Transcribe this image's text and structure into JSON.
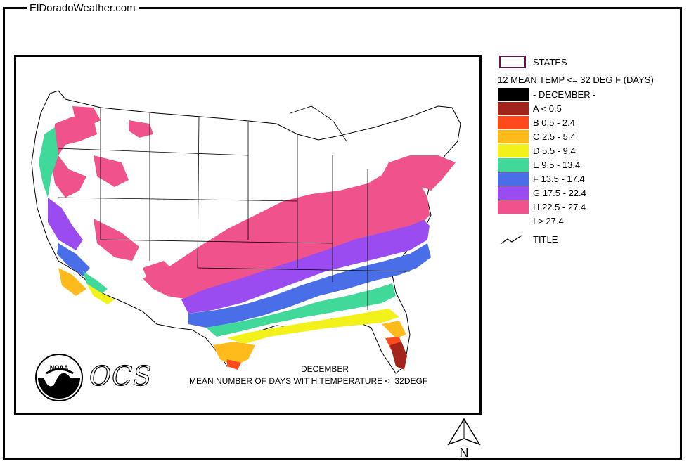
{
  "site": {
    "title": "ElDoradoWeather.com"
  },
  "legend": {
    "states_label": "STATES",
    "title": "12 MEAN TEMP <= 32 DEG F (DAYS)",
    "items": [
      {
        "label": "- DECEMBER -",
        "color": "#000000"
      },
      {
        "label": "A < 0.5",
        "color": "#a3241a"
      },
      {
        "label": "B 0.5 - 2.4",
        "color": "#ff4a1e"
      },
      {
        "label": "C 2.5 - 5.4",
        "color": "#ffbb1c"
      },
      {
        "label": "D 5.5 - 9.4",
        "color": "#f2f21a"
      },
      {
        "label": "E 9.5 - 13.4",
        "color": "#40d99a"
      },
      {
        "label": "F 13.5 - 17.4",
        "color": "#4a6ee8"
      },
      {
        "label": "G 17.5 - 22.4",
        "color": "#9a4cf0"
      },
      {
        "label": "H 22.5 - 27.4",
        "color": "#f0528c"
      },
      {
        "label": "I > 27.4",
        "color": "#ffffff"
      }
    ],
    "title_line_label": "TITLE"
  },
  "map": {
    "caption_line1": "DECEMBER",
    "caption_line2": "MEAN NUMBER OF DAYS WIT H  TEMPERATURE  <=32DEGF",
    "noaa_text": "NOAA",
    "ocs_text": "OCS",
    "north_label": "N"
  }
}
